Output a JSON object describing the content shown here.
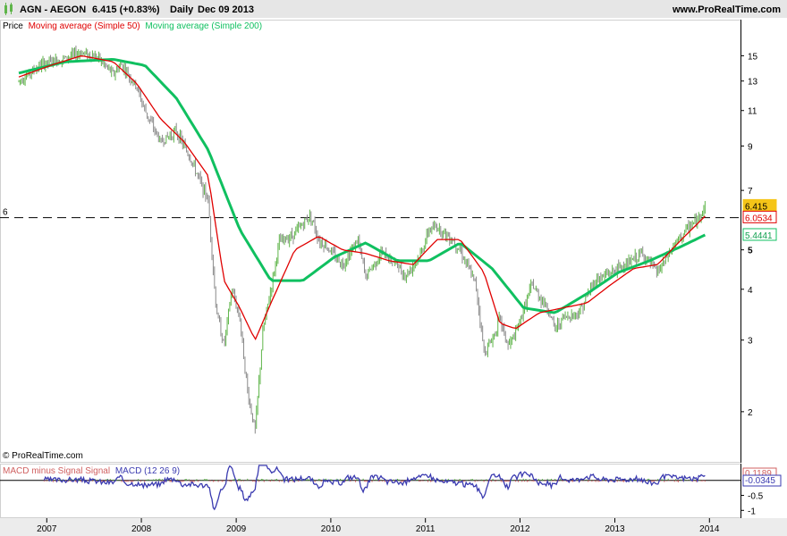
{
  "header": {
    "symbol": "AGN - AEGON",
    "price": "6.415 (+0.83%)",
    "period": "Daily",
    "date": "Dec 09 2013",
    "site": "www.ProRealTime.com"
  },
  "legend": {
    "price": "Price",
    "ma50": "Moving average (Simple 50)",
    "ma200": "Moving average (Simple 200)"
  },
  "watermark": "© ProRealTime.com",
  "colors": {
    "candle_up": "#5fb54a",
    "candle_down": "#8a8a8a",
    "ma50": "#e00000",
    "ma200": "#10c060",
    "macd": "#3a3ab0",
    "macd_hist": "#d06060",
    "badge_price_bg": "#f5c518",
    "badge_ma50_border": "#e00000",
    "badge_ma200_border": "#10c060"
  },
  "macd_legend": {
    "hist": "MACD minus Signal Signal",
    "macd": "MACD (12 26 9)"
  },
  "chart_data": {
    "type": "line",
    "y_scale": "log",
    "ylim": [
      1.7,
      16.8
    ],
    "y_ticks": [
      "15",
      "13",
      "11",
      "9",
      "7",
      "5",
      "4",
      "3",
      "2"
    ],
    "x_ticks": [
      "2007",
      "2008",
      "2009",
      "2010",
      "2011",
      "2012",
      "2013",
      "2014"
    ],
    "reference_line": {
      "label": "6",
      "value": 6
    },
    "badges": {
      "price": "6.415",
      "ma50": "6.0534",
      "ma200": "5.4441"
    },
    "price_series": {
      "name": "Price",
      "x": [
        "2006-09",
        "2006-12",
        "2007-03",
        "2007-05",
        "2007-07",
        "2007-09",
        "2007-10",
        "2007-12",
        "2008-01",
        "2008-03",
        "2008-05",
        "2008-07",
        "2008-09",
        "2008-10",
        "2008-11",
        "2008-12",
        "2009-01",
        "2009-02",
        "2009-03",
        "2009-04",
        "2009-05",
        "2009-06",
        "2009-08",
        "2009-10",
        "2009-11",
        "2009-12",
        "2010-02",
        "2010-04",
        "2010-05",
        "2010-07",
        "2010-09",
        "2010-10",
        "2010-12",
        "2011-01",
        "2011-02",
        "2011-04",
        "2011-05",
        "2011-07",
        "2011-08",
        "2011-09",
        "2011-10",
        "2011-11",
        "2011-12",
        "2012-02",
        "2012-04",
        "2012-05",
        "2012-06",
        "2012-08",
        "2012-10",
        "2012-12",
        "2013-02",
        "2013-04",
        "2013-06",
        "2013-08",
        "2013-09",
        "2013-10",
        "2013-11",
        "2013-12"
      ],
      "y": [
        13.0,
        14.3,
        14.8,
        15.3,
        14.9,
        13.5,
        14.3,
        12.5,
        11.0,
        9.2,
        9.8,
        8.2,
        6.6,
        3.6,
        2.9,
        4.0,
        3.4,
        2.2,
        1.8,
        3.2,
        4.0,
        5.2,
        5.5,
        6.1,
        5.3,
        5.1,
        4.6,
        5.3,
        4.3,
        4.9,
        4.6,
        4.3,
        4.9,
        5.6,
        5.7,
        5.3,
        5.0,
        4.1,
        2.8,
        3.0,
        3.4,
        2.9,
        3.1,
        4.1,
        3.6,
        3.2,
        3.4,
        3.5,
        4.2,
        4.4,
        4.6,
        4.9,
        4.4,
        5.1,
        5.4,
        5.7,
        5.9,
        6.415
      ]
    },
    "ma50_series": {
      "name": "Moving average (Simple 50)",
      "x": [
        "2006-09",
        "2007-01",
        "2007-05",
        "2007-09",
        "2007-12",
        "2008-03",
        "2008-06",
        "2008-09",
        "2008-11",
        "2009-01",
        "2009-03",
        "2009-05",
        "2009-08",
        "2009-11",
        "2010-02",
        "2010-05",
        "2010-08",
        "2010-11",
        "2011-02",
        "2011-05",
        "2011-08",
        "2011-10",
        "2011-12",
        "2012-03",
        "2012-06",
        "2012-09",
        "2012-12",
        "2013-03",
        "2013-06",
        "2013-09",
        "2013-12"
      ],
      "y": [
        13.3,
        14.2,
        15.0,
        14.5,
        12.8,
        10.5,
        9.2,
        7.6,
        4.2,
        3.6,
        3.0,
        3.7,
        5.0,
        5.4,
        5.0,
        4.9,
        4.7,
        4.6,
        5.3,
        5.3,
        4.4,
        3.3,
        3.2,
        3.5,
        3.6,
        3.7,
        4.1,
        4.5,
        4.6,
        5.3,
        6.05
      ]
    },
    "ma200_series": {
      "name": "Moving average (Simple 200)",
      "x": [
        "2006-09",
        "2007-03",
        "2007-09",
        "2008-01",
        "2008-05",
        "2008-09",
        "2009-01",
        "2009-05",
        "2009-09",
        "2010-01",
        "2010-05",
        "2010-09",
        "2011-01",
        "2011-05",
        "2011-09",
        "2012-01",
        "2012-05",
        "2012-09",
        "2013-01",
        "2013-05",
        "2013-09",
        "2013-12"
      ],
      "y": [
        13.6,
        14.5,
        14.7,
        14.2,
        11.8,
        8.8,
        5.6,
        4.2,
        4.2,
        4.8,
        5.2,
        4.7,
        4.7,
        5.2,
        4.5,
        3.6,
        3.5,
        3.9,
        4.4,
        4.7,
        5.1,
        5.44
      ]
    },
    "macd_panel": {
      "ylim": [
        -1.2,
        0.5
      ],
      "y_ticks": [
        "-0.5",
        "-1"
      ],
      "badges": {
        "macd": "0.1189",
        "hist": "-0.0345"
      }
    }
  }
}
